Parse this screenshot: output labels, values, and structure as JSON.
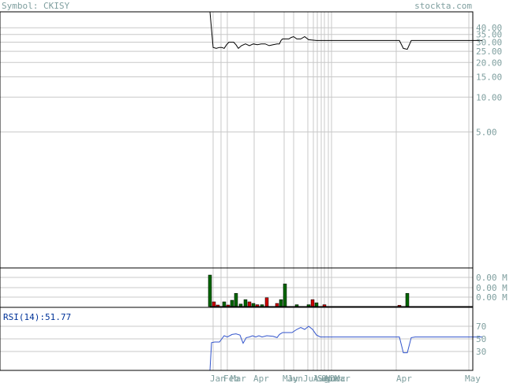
{
  "header": {
    "symbol_label": "Symbol: CKISY",
    "brand": "stockta.com"
  },
  "rsi": {
    "label": "RSI(14):",
    "value": "51.77"
  },
  "chart_data": [
    {
      "type": "line",
      "panel": "price",
      "scale": "log",
      "y_ticks": [
        "40.00",
        "35.00",
        "30.00",
        "25.00",
        "20.00",
        "15.00",
        "10.00",
        "5.00"
      ],
      "x_tick_labels": [
        "Jan",
        "Feb",
        "Mar",
        "Apr",
        "May",
        "Jun",
        "Jul",
        "Aug",
        "Sep",
        "Oct",
        "Nov",
        "Dec",
        "Mar",
        "Apr",
        "May"
      ],
      "ylim": [
        0.33,
        55
      ],
      "x": [
        0,
        4,
        8,
        12,
        15,
        18,
        21,
        24,
        27,
        30,
        33,
        36,
        40,
        45,
        50,
        55,
        60,
        65,
        70,
        75,
        80,
        85,
        88,
        90,
        92,
        95,
        98,
        100,
        103,
        106,
        110,
        115,
        120,
        125,
        135,
        150,
        170,
        190,
        210,
        230,
        240,
        245,
        250,
        255,
        260,
        270,
        290,
        310,
        330,
        345
      ],
      "close": [
        55,
        27,
        26.5,
        27,
        27,
        26.5,
        28.5,
        30,
        30,
        30,
        28.5,
        26.5,
        28,
        29,
        28,
        29,
        28.5,
        29,
        29,
        28,
        28.5,
        29,
        29,
        31,
        32,
        32,
        32,
        32,
        33,
        33.5,
        32,
        32,
        33.5,
        31.5,
        31,
        31,
        31,
        31,
        31,
        31,
        31,
        26.5,
        26,
        31,
        31,
        31,
        31,
        31,
        31,
        31
      ]
    },
    {
      "type": "bar",
      "panel": "volume",
      "y_ticks": [
        "0.00 M",
        "0.00 M",
        "0.00 M"
      ],
      "bars": [
        {
          "x": 0,
          "value": 1.0,
          "direction": "up"
        },
        {
          "x": 5,
          "value": 0.15,
          "direction": "down"
        },
        {
          "x": 10,
          "value": 0.05,
          "direction": "down"
        },
        {
          "x": 18,
          "value": 0.15,
          "direction": "up"
        },
        {
          "x": 23,
          "value": 0.05,
          "direction": "down"
        },
        {
          "x": 28,
          "value": 0.2,
          "direction": "up"
        },
        {
          "x": 33,
          "value": 0.42,
          "direction": "up"
        },
        {
          "x": 39,
          "value": 0.08,
          "direction": "up"
        },
        {
          "x": 45,
          "value": 0.22,
          "direction": "up"
        },
        {
          "x": 50,
          "value": 0.15,
          "direction": "down"
        },
        {
          "x": 55,
          "value": 0.1,
          "direction": "up"
        },
        {
          "x": 60,
          "value": 0.06,
          "direction": "down"
        },
        {
          "x": 66,
          "value": 0.06,
          "direction": "up"
        },
        {
          "x": 72,
          "value": 0.28,
          "direction": "down"
        },
        {
          "x": 85,
          "value": 0.1,
          "direction": "down"
        },
        {
          "x": 90,
          "value": 0.22,
          "direction": "up"
        },
        {
          "x": 95,
          "value": 0.72,
          "direction": "up"
        },
        {
          "x": 110,
          "value": 0.06,
          "direction": "up"
        },
        {
          "x": 125,
          "value": 0.06,
          "direction": "up"
        },
        {
          "x": 130,
          "value": 0.22,
          "direction": "down"
        },
        {
          "x": 135,
          "value": 0.12,
          "direction": "up"
        },
        {
          "x": 145,
          "value": 0.06,
          "direction": "down"
        },
        {
          "x": 240,
          "value": 0.04,
          "direction": "down"
        },
        {
          "x": 250,
          "value": 0.42,
          "direction": "up"
        }
      ]
    },
    {
      "type": "line",
      "panel": "rsi",
      "y_ticks": [
        "70",
        "50",
        "30"
      ],
      "ylim": [
        0,
        100
      ],
      "x": [
        0,
        2,
        6,
        12,
        18,
        22,
        28,
        33,
        38,
        42,
        46,
        50,
        54,
        58,
        62,
        66,
        72,
        80,
        85,
        88,
        92,
        98,
        104,
        110,
        115,
        120,
        125,
        130,
        135,
        140,
        150,
        170,
        200,
        230,
        240,
        245,
        250,
        255,
        260,
        280,
        310,
        345
      ],
      "values": [
        0,
        44,
        45,
        45,
        55,
        53,
        57,
        58,
        56,
        43,
        52,
        53,
        55,
        53,
        55,
        53,
        55,
        54,
        52,
        57,
        60,
        60,
        60,
        65,
        68,
        65,
        70,
        65,
        56,
        53,
        53,
        53,
        53,
        53,
        53,
        28,
        28,
        52,
        53,
        53,
        53,
        53
      ]
    }
  ],
  "colors": {
    "price_line": "#000000",
    "rsi_line": "#3355cc",
    "volume_up": "#006600",
    "volume_down": "#cc0000",
    "grid": "#c8c8c8",
    "axis_text": "#7f9f9f",
    "rsi_value": "#003399"
  }
}
